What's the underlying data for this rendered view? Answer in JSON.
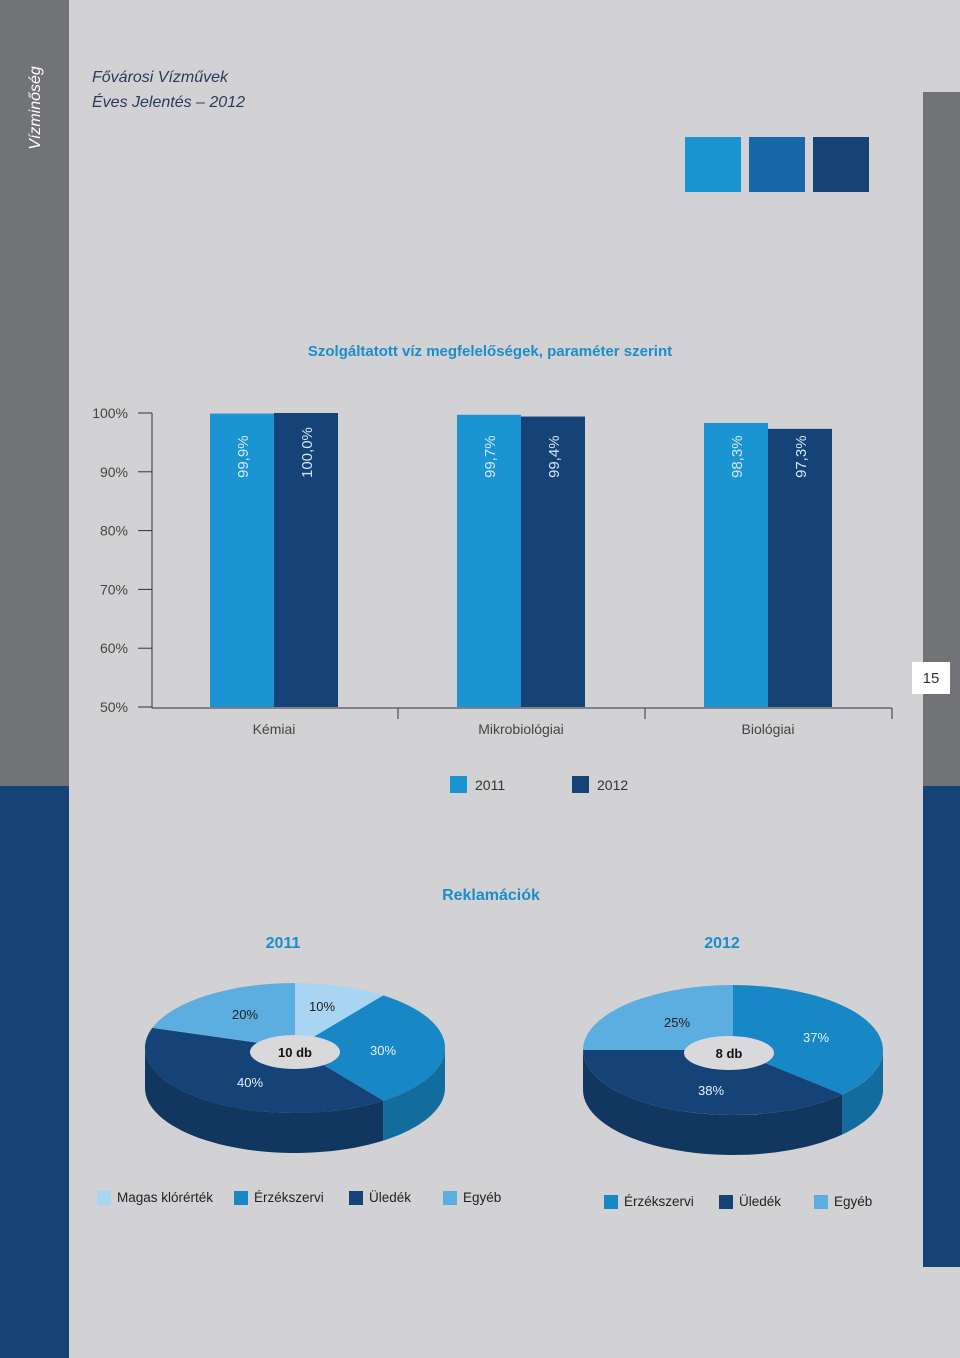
{
  "side_label": "Vízminőség",
  "header": {
    "line1": "Fővárosi Vízművek",
    "line2": "Éves Jelentés – 2012"
  },
  "page_number": "15",
  "colors": {
    "swatch1": "#1b95d1",
    "swatch2": "#1567a8",
    "swatch3": "#154377",
    "y2011": "#1b95d1",
    "y2012": "#154377",
    "magas": "#a9d5f2",
    "erzek": "#1787c6",
    "uledek": "#154377",
    "egyeb": "#5cade0"
  },
  "chart_data": [
    {
      "type": "bar",
      "title": "Szolgáltatott víz megfelelőségek, paraméter szerint",
      "categories": [
        "Kémiai",
        "Mikrobiológiai",
        "Biológiai"
      ],
      "series": [
        {
          "name": "2011",
          "values": [
            99.9,
            99.7,
            98.3
          ],
          "labels": [
            "99,9%",
            "99,7%",
            "98,3%"
          ]
        },
        {
          "name": "2012",
          "values": [
            100.0,
            99.4,
            97.3
          ],
          "labels": [
            "100,0%",
            "99,4%",
            "97,3%"
          ]
        }
      ],
      "ylim": [
        50,
        100
      ],
      "yticks": [
        "50%",
        "60%",
        "70%",
        "80%",
        "90%",
        "100%"
      ],
      "legend": "bottom"
    },
    {
      "type": "pie",
      "title": "2011",
      "center_label": "10 db",
      "slices": [
        {
          "name": "Magas klórérték",
          "value": 10,
          "label": "10%"
        },
        {
          "name": "Érzékszervi",
          "value": 30,
          "label": "30%"
        },
        {
          "name": "Üledék",
          "value": 40,
          "label": "40%"
        },
        {
          "name": "Egyéb",
          "value": 20,
          "label": "20%"
        }
      ]
    },
    {
      "type": "pie",
      "title": "2012",
      "center_label": "8 db",
      "slices": [
        {
          "name": "Érzékszervi",
          "value": 37,
          "label": "37%"
        },
        {
          "name": "Üledék",
          "value": 38,
          "label": "38%"
        },
        {
          "name": "Egyéb",
          "value": 25,
          "label": "25%"
        }
      ]
    }
  ],
  "pie_section_title": "Reklamációk",
  "bar_legend": [
    "2011",
    "2012"
  ],
  "pie_legend_2011": [
    "Magas klórérték",
    "Érzékszervi",
    "Üledék",
    "Egyéb"
  ],
  "pie_legend_2012": [
    "Érzékszervi",
    "Üledék",
    "Egyéb"
  ]
}
